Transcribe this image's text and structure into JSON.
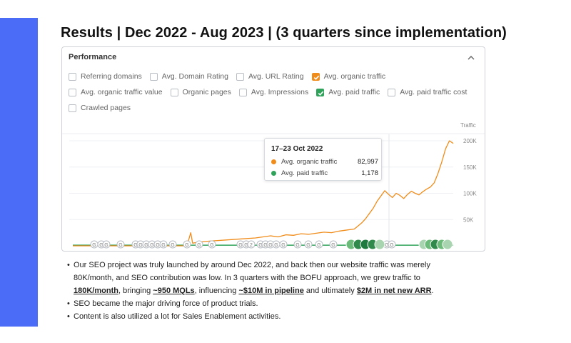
{
  "slide": {
    "title": "Results | Dec 2022 - Aug 2023 | (3 quarters since implementation)"
  },
  "panel": {
    "header": "Performance",
    "collapse_icon": "chevron-up-icon",
    "metrics_row1": [
      {
        "label": "Referring domains",
        "checked": false
      },
      {
        "label": "Avg. Domain Rating",
        "checked": false
      },
      {
        "label": "Avg. URL Rating",
        "checked": false
      },
      {
        "label": "Avg. organic traffic",
        "checked": true,
        "color": "#f08c1a"
      }
    ],
    "metrics_row2": [
      {
        "label": "Avg. organic traffic value",
        "checked": false
      },
      {
        "label": "Organic pages",
        "checked": false
      },
      {
        "label": "Avg. Impressions",
        "checked": false
      },
      {
        "label": "Avg. paid traffic",
        "checked": true,
        "color": "#2fa35a"
      },
      {
        "label": "Avg. paid traffic cost",
        "checked": false
      }
    ],
    "metrics_row3": [
      {
        "label": "Crawled pages",
        "checked": false
      }
    ]
  },
  "chart_data": {
    "type": "line",
    "ylabel": "Traffic",
    "yticks": [
      "200K",
      "150K",
      "100K",
      "50K"
    ],
    "ylim": [
      0,
      215000
    ],
    "series": [
      {
        "name": "Avg. organic traffic",
        "color": "#f08c1a",
        "points": [
          [
            0,
            0
          ],
          [
            4,
            0
          ],
          [
            8,
            0
          ],
          [
            12,
            0
          ],
          [
            16,
            0
          ],
          [
            20,
            0
          ],
          [
            24,
            0
          ],
          [
            28,
            0
          ],
          [
            30,
            0
          ],
          [
            31,
            25000
          ],
          [
            31.5,
            5000
          ],
          [
            33,
            7000
          ],
          [
            36,
            9000
          ],
          [
            40,
            11000
          ],
          [
            44,
            13000
          ],
          [
            48,
            15000
          ],
          [
            50,
            17000
          ],
          [
            52,
            19000
          ],
          [
            54,
            17000
          ],
          [
            56,
            21000
          ],
          [
            58,
            20000
          ],
          [
            60,
            23000
          ],
          [
            62,
            22000
          ],
          [
            64,
            24000
          ],
          [
            66,
            26000
          ],
          [
            68,
            25000
          ],
          [
            70,
            28000
          ],
          [
            72,
            30000
          ],
          [
            74,
            32000
          ],
          [
            75,
            38000
          ],
          [
            76,
            44000
          ],
          [
            77,
            52000
          ],
          [
            78,
            62000
          ],
          [
            79,
            72000
          ],
          [
            80,
            85000
          ],
          [
            81,
            95000
          ],
          [
            82,
            105000
          ],
          [
            83,
            98000
          ],
          [
            84,
            92000
          ],
          [
            85,
            100000
          ],
          [
            86,
            96000
          ],
          [
            87,
            90000
          ],
          [
            88,
            98000
          ],
          [
            89,
            104000
          ],
          [
            90,
            100000
          ],
          [
            91,
            97000
          ],
          [
            92,
            103000
          ],
          [
            93,
            108000
          ],
          [
            94,
            112000
          ],
          [
            95,
            120000
          ],
          [
            96,
            138000
          ],
          [
            97,
            160000
          ],
          [
            98,
            185000
          ],
          [
            99,
            200000
          ],
          [
            100,
            195000
          ]
        ]
      },
      {
        "name": "Avg. paid traffic",
        "color": "#2fa35a",
        "points": [
          [
            0,
            1178
          ],
          [
            100,
            1178
          ]
        ]
      }
    ],
    "tooltip": {
      "date": "17–23 Oct 2022",
      "rows": [
        {
          "label": "Avg. organic traffic",
          "value": "82,997",
          "color": "#f08c1a"
        },
        {
          "label": "Avg. paid traffic",
          "value": "1,178",
          "color": "#2fa35a"
        }
      ]
    },
    "annotation_markers": [
      "G",
      "G",
      "G",
      "G",
      "G",
      "G",
      "G",
      "G",
      "G",
      "G",
      "G",
      "G",
      "G",
      "G",
      "G",
      "G",
      "2",
      "G",
      "G",
      "G",
      "G",
      "G",
      "G",
      "G",
      "G",
      "G",
      "G",
      "G",
      "G",
      "G",
      "G",
      "G"
    ]
  },
  "notes": {
    "b1_pre": "Our SEO project was truly launched by around Dec 2022, and back then our website traffic was merely 80K/month, and SEO contribution was low. In 3 quarters with the BOFU approach, we grew traffic to ",
    "b1_h1": "180K/month",
    "b1_t1": ", bringing ",
    "b1_h2": "~950 MQLs",
    "b1_t2": ", influencing ",
    "b1_h3": "~$10M in pipeline",
    "b1_t3": " and ultimately ",
    "b1_h4": "$2M in net new ARR",
    "b1_t4": ".",
    "b2": "SEO became the major driving force of product trials.",
    "b3": "Content is also utilized a lot for Sales Enablement activities."
  }
}
